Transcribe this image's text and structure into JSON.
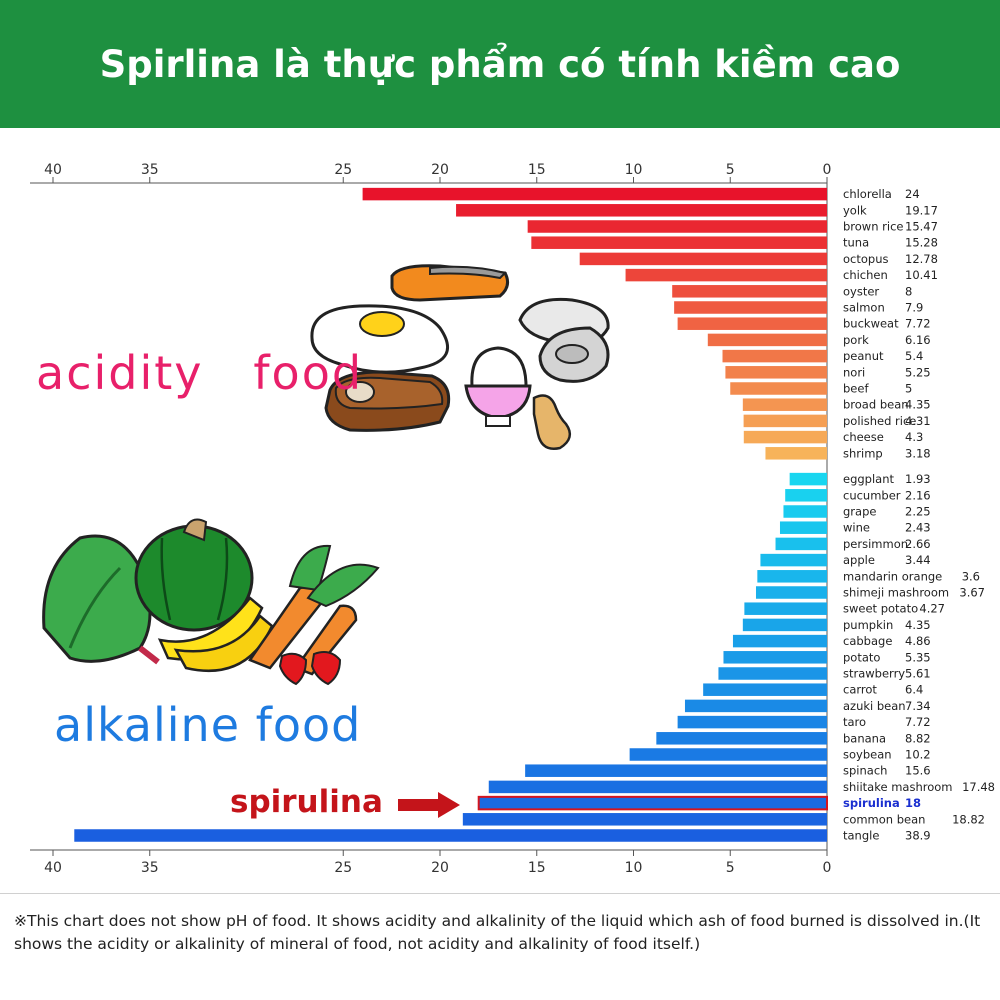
{
  "header": {
    "title": "Spirlina là thực phẩm có tính kiềm cao"
  },
  "labels": {
    "acidity": "acidity   food",
    "alkaline": "alkaline food",
    "spirulina": "spirulina"
  },
  "footnote": "※This chart does not show pH of food. It shows acidity and alkalinity of the liquid which ash of food burned is dissolved in.(It shows the acidity or alkalinity of mineral of food, not acidity and alkalinity of food itself.)",
  "colors": {
    "header": "#1e9040",
    "acid_dark": "#e8132b",
    "acid_light": "#f7b35a",
    "alk_light": "#19d6f0",
    "alk_dark": "#1a5fe0",
    "highlight_border": "#d6141e"
  },
  "chart_data": {
    "type": "bar",
    "orientation": "horizontal",
    "axis_direction": "reversed",
    "xlim": [
      0,
      40
    ],
    "top_ticks": [
      "40",
      "35",
      "25",
      "20",
      "15",
      "10",
      "5",
      "0"
    ],
    "bottom_ticks": [
      "40",
      "35",
      "25",
      "20",
      "15",
      "10",
      "5",
      "0"
    ],
    "series": [
      {
        "name": "acidity food",
        "categories": [
          "chlorella",
          "yolk",
          "brown rice",
          "tuna",
          "octopus",
          "chichen",
          "oyster",
          "salmon",
          "buckweat",
          "pork",
          "peanut",
          "nori",
          "beef",
          "broad bean",
          "polished rice",
          "cheese",
          "shrimp"
        ],
        "values": [
          24,
          19.17,
          15.47,
          15.28,
          12.78,
          10.41,
          8,
          7.9,
          7.72,
          6.16,
          5.4,
          5.25,
          5,
          4.35,
          4.31,
          4.3,
          3.18
        ],
        "value_labels": [
          "24",
          "19.17",
          "15.47",
          "15.28",
          "12.78",
          "10.41",
          "8",
          "7.9",
          "7.72",
          "6.16",
          "5.4",
          "5.25",
          "5",
          "4.35",
          "4.31",
          "4.3",
          "3.18"
        ]
      },
      {
        "name": "alkaline food",
        "categories": [
          "eggplant",
          "cucumber",
          "grape",
          "wine",
          "persimmon",
          "apple",
          "mandarin orange",
          "shimeji mashroom",
          "sweet potato",
          "pumpkin",
          "cabbage",
          "potato",
          "strawberry",
          "carrot",
          "azuki bean",
          "taro",
          "banana",
          "soybean",
          "spinach",
          "shiitake mashroom",
          "spirulina",
          "common bean",
          "tangle"
        ],
        "values": [
          1.93,
          2.16,
          2.25,
          2.43,
          2.66,
          3.44,
          3.6,
          3.67,
          4.27,
          4.35,
          4.86,
          5.35,
          5.61,
          6.4,
          7.34,
          7.72,
          8.82,
          10.2,
          15.6,
          17.48,
          18,
          18.82,
          38.9
        ],
        "value_labels": [
          "1.93",
          "2.16",
          "2.25",
          "2.43",
          "2.66",
          "3.44",
          "3.6",
          "3.67",
          "4.27",
          "4.35",
          "4.86",
          "5.35",
          "5.61",
          "6.4",
          "7.34",
          "7.72",
          "8.82",
          "10.2",
          "15.6",
          "17.48",
          "18",
          "18.82",
          "38.9"
        ],
        "highlight": "spirulina"
      }
    ]
  }
}
